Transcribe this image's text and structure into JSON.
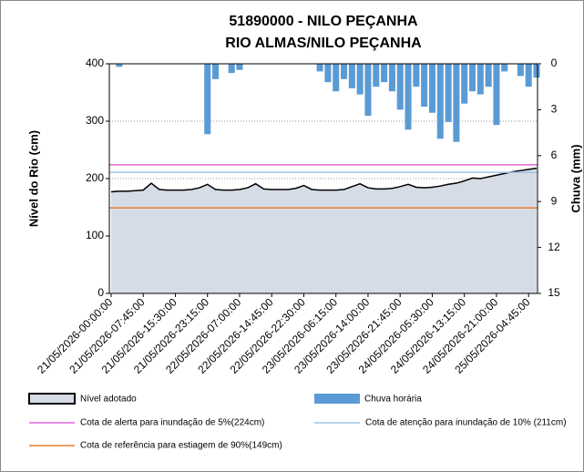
{
  "chart_data": {
    "type": "combo",
    "title": "51890000 - NILO PEÇANHA",
    "subtitle": "RIO ALMAS/NILO PEÇANHA",
    "ylabel": "Nível do Rio (cm)",
    "y2label": "Chuva (mm)",
    "categories": [
      "21/05/2026-00:00:00",
      null,
      null,
      null,
      "21/05/2026-07:45:00",
      null,
      null,
      null,
      "21/05/2026-15:30:00",
      null,
      null,
      null,
      "21/05/2026-23:15:00",
      null,
      null,
      null,
      "22/05/2026-07:00:00",
      null,
      null,
      null,
      "22/05/2026-14:45:00",
      null,
      null,
      null,
      "22/05/2026-22:30:00",
      null,
      null,
      null,
      "23/05/2026-06:15:00",
      null,
      null,
      null,
      "23/05/2026-14:00:00",
      null,
      null,
      null,
      "23/05/2026-21:45:00",
      null,
      null,
      null,
      "24/05/2026-05:30:00",
      null,
      null,
      null,
      "24/05/2026-13:15:00",
      null,
      null,
      null,
      "24/05/2026-21:00:00",
      null,
      null,
      null,
      "25/05/2026-04:45:00",
      null
    ],
    "series": [
      {
        "name": "Nível adotado",
        "type": "area",
        "color": "#d6dce5",
        "line_color": "#000000",
        "values": [
          177,
          178,
          178,
          179,
          180,
          192,
          181,
          180,
          180,
          180,
          181,
          184,
          190,
          181,
          180,
          180,
          181,
          184,
          191,
          182,
          181,
          181,
          181,
          183,
          188,
          181,
          180,
          180,
          180,
          181,
          186,
          191,
          184,
          182,
          182,
          183,
          186,
          190,
          185,
          184,
          185,
          187,
          190,
          192,
          196,
          201,
          200,
          203,
          206,
          209,
          212,
          214,
          216,
          218
        ]
      },
      {
        "name": "Chuva horária",
        "type": "bar",
        "axis": "y2",
        "color": "#5b9bd5",
        "values": [
          0,
          0.2,
          0,
          0,
          0,
          0,
          0,
          0,
          0,
          0,
          0,
          0,
          4.6,
          1.0,
          0,
          0.6,
          0.4,
          0,
          0,
          0,
          0,
          0,
          0,
          0,
          0,
          0,
          0.5,
          1.2,
          1.8,
          1.0,
          1.6,
          2.0,
          3.4,
          1.5,
          1.2,
          1.8,
          3.0,
          4.3,
          1.5,
          2.8,
          3.2,
          4.9,
          3.8,
          5.1,
          2.6,
          1.8,
          2.0,
          1.5,
          4.0,
          0.5,
          0,
          0.8,
          1.5,
          0.9
        ]
      }
    ],
    "reference_lines": [
      {
        "name": "Cota de alerta para inundação de 5%(224cm)",
        "value": 224,
        "color": "#e066e0"
      },
      {
        "name": "Cota de atenção para inundação de 10% (211cm)",
        "value": 211,
        "color": "#9dc3e6"
      },
      {
        "name": "Cota de referência para estiagem de 90%(149cm)",
        "value": 149,
        "color": "#ed7d31"
      }
    ],
    "ylim": [
      0,
      400
    ],
    "yticks": [
      0,
      100,
      200,
      300,
      400
    ],
    "y2lim": [
      0,
      15
    ],
    "y2ticks": [
      0,
      3,
      6,
      9,
      12,
      15
    ],
    "y2_inverted": true,
    "grid": true
  }
}
